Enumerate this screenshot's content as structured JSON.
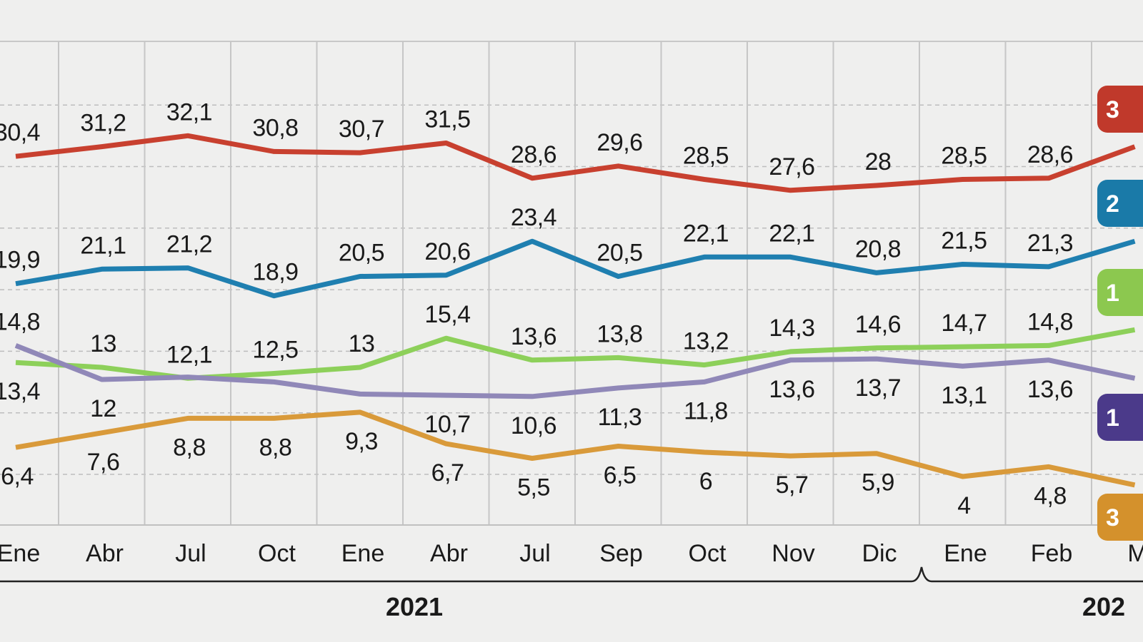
{
  "chart_data": {
    "type": "line",
    "title": "",
    "xlabel": "",
    "ylabel": "",
    "ylim": [
      0,
      40
    ],
    "grid": true,
    "categories": [
      "Ene",
      "Abr",
      "Jul",
      "Oct",
      "Ene",
      "Abr",
      "Jul",
      "Sep",
      "Oct",
      "Nov",
      "Dic",
      "Ene",
      "Feb",
      "M"
    ],
    "year_labels": [
      {
        "text": "2021",
        "start_index": 4,
        "end_index": 10
      },
      {
        "text": "202",
        "start_index": 11,
        "end_index": 13
      }
    ],
    "series": [
      {
        "color": "#c8402f",
        "badge": "3",
        "values": [
          30.4,
          31.2,
          32.1,
          30.8,
          30.7,
          31.5,
          28.6,
          29.6,
          28.5,
          27.6,
          28,
          28.5,
          28.6,
          31.2
        ],
        "labels": [
          "30,4",
          "31,2",
          "32,1",
          "30,8",
          "30,7",
          "31,5",
          "28,6",
          "29,6",
          "28,5",
          "27,6",
          "28",
          "28,5",
          "28,6",
          null
        ]
      },
      {
        "color": "#1f7fb0",
        "badge": "2",
        "values": [
          19.9,
          21.1,
          21.2,
          18.9,
          20.5,
          20.6,
          23.4,
          20.5,
          22.1,
          22.1,
          20.8,
          21.5,
          21.3,
          23.4
        ],
        "labels": [
          "19,9",
          "21,1",
          "21,2",
          "18,9",
          "20,5",
          "20,6",
          "23,4",
          "20,5",
          "22,1",
          "22,1",
          "20,8",
          "21,5",
          "21,3",
          null
        ]
      },
      {
        "color": "#8dd05a",
        "badge": "1",
        "values": [
          13.4,
          13,
          12.1,
          12.5,
          13,
          15.4,
          13.6,
          13.8,
          13.2,
          14.3,
          14.6,
          14.7,
          14.8,
          16.1
        ],
        "labels": [
          "13,4",
          "13",
          "12,1",
          "12,5",
          "13",
          "15,4",
          "13,6",
          "13,8",
          "13,2",
          "14,3",
          "14,6",
          "14,7",
          "14,8",
          null
        ]
      },
      {
        "color": "#9088b8",
        "badge": "1",
        "values": [
          14.8,
          12,
          12.2,
          11.8,
          10.8,
          10.7,
          10.6,
          11.3,
          11.8,
          13.6,
          13.7,
          13.1,
          13.6,
          12.1
        ],
        "labels": [
          "14,8",
          "12",
          null,
          null,
          null,
          "10,7",
          "10,6",
          "11,3",
          "11,8",
          "13,6",
          "13,7",
          "13,1",
          "13,6",
          null
        ]
      },
      {
        "color": "#d99a3a",
        "badge": "3",
        "values": [
          6.4,
          7.6,
          8.8,
          8.8,
          9.3,
          6.7,
          5.5,
          6.5,
          6,
          5.7,
          5.9,
          4,
          4.8,
          3.3
        ],
        "labels": [
          "6,4",
          "7,6",
          "8,8",
          "8,8",
          "9,3",
          "6,7",
          "5,5",
          "6,5",
          "6",
          "5,7",
          "5,9",
          "4",
          "4,8",
          null
        ]
      }
    ],
    "badge_colors": [
      "#c0392b",
      "#1a7aa8",
      "#8cc84f",
      "#4b3a8a",
      "#d4912c"
    ]
  }
}
